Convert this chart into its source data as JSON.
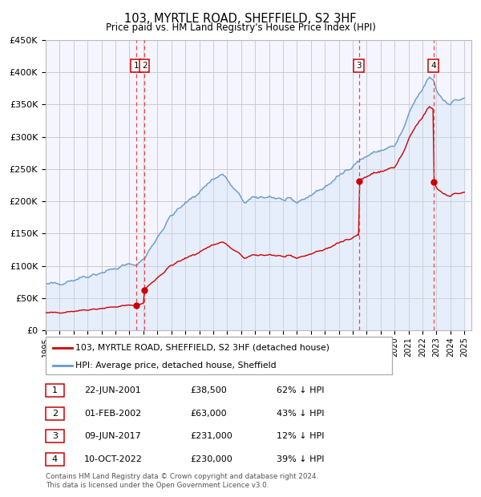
{
  "title": "103, MYRTLE ROAD, SHEFFIELD, S2 3HF",
  "subtitle": "Price paid vs. HM Land Registry's House Price Index (HPI)",
  "footer": "Contains HM Land Registry data © Crown copyright and database right 2024.\nThis data is licensed under the Open Government Licence v3.0.",
  "legend_label_red": "103, MYRTLE ROAD, SHEFFIELD, S2 3HF (detached house)",
  "legend_label_blue": "HPI: Average price, detached house, Sheffield",
  "transactions": [
    {
      "num": 1,
      "date": "22-JUN-2001",
      "date_dec": 2001.47,
      "price": 38500,
      "pct": "62% ↓ HPI"
    },
    {
      "num": 2,
      "date": "01-FEB-2002",
      "date_dec": 2002.08,
      "price": 63000,
      "pct": "43% ↓ HPI"
    },
    {
      "num": 3,
      "date": "09-JUN-2017",
      "date_dec": 2017.44,
      "price": 231000,
      "pct": "12% ↓ HPI"
    },
    {
      "num": 4,
      "date": "10-OCT-2022",
      "date_dec": 2022.78,
      "price": 230000,
      "pct": "39% ↓ HPI"
    }
  ],
  "red_line_color": "#cc0000",
  "blue_line_color": "#6699cc",
  "blue_fill_color": "#cce0f5",
  "vline_color": "#ee4444",
  "box_edge_color": "#cc0000",
  "grid_color": "#cccccc",
  "background_color": "#ffffff",
  "plot_bg_color": "#f5f5ff",
  "ylim": [
    0,
    450000
  ],
  "yticks": [
    0,
    50000,
    100000,
    150000,
    200000,
    250000,
    300000,
    350000,
    400000,
    450000
  ],
  "xlim_start": 1995.0,
  "xlim_end": 2025.5,
  "hpi_anchors_t": [
    1995.0,
    1996.0,
    1997.0,
    1998.0,
    1999.0,
    2000.0,
    2001.0,
    2001.5,
    2002.1,
    2003.0,
    2004.0,
    2005.0,
    2006.0,
    2007.0,
    2007.7,
    2008.5,
    2009.3,
    2010.0,
    2011.0,
    2012.0,
    2013.0,
    2014.0,
    2015.0,
    2016.0,
    2017.0,
    2017.5,
    2018.0,
    2019.0,
    2020.0,
    2020.6,
    2021.0,
    2021.5,
    2022.0,
    2022.5,
    2022.8,
    2023.0,
    2023.5,
    2024.0,
    2024.5,
    2025.0
  ],
  "hpi_anchors_v": [
    70000,
    74000,
    79000,
    85000,
    90000,
    96000,
    102000,
    102500,
    112000,
    145000,
    178000,
    196000,
    215000,
    235000,
    242000,
    218000,
    198000,
    205000,
    208000,
    202000,
    198000,
    210000,
    222000,
    238000,
    257000,
    263000,
    270000,
    279000,
    285000,
    310000,
    332000,
    357000,
    373000,
    392000,
    388000,
    372000,
    357000,
    352000,
    357000,
    360000
  ]
}
